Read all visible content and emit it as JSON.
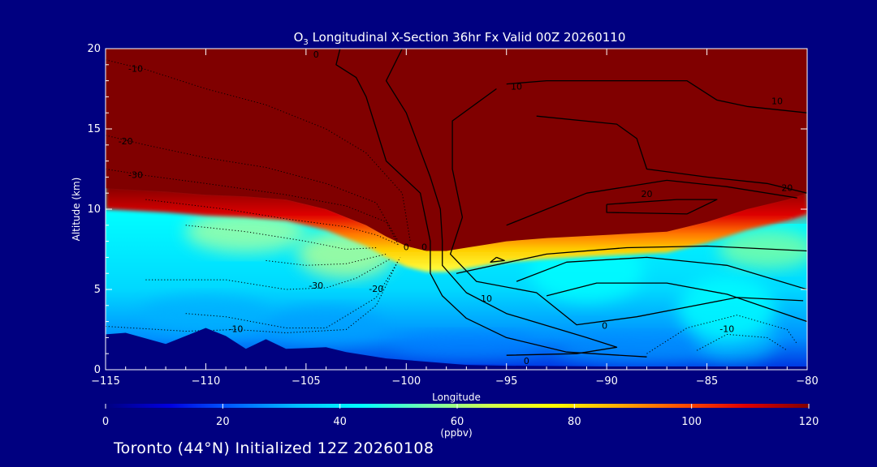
{
  "chart_data": {
    "type": "heatmap",
    "title": {
      "lead": "O",
      "sub": "3",
      "rest": " Longitudinal X-Section 36hr  Fx Valid 00Z 20260110"
    },
    "xlabel": "Longitude",
    "ylabel": "Altitude (km)",
    "xlim": [
      -115,
      -80
    ],
    "ylim": [
      0,
      20
    ],
    "x_ticks": [
      -115,
      -110,
      -105,
      -100,
      -95,
      -90,
      -85,
      -80
    ],
    "x_tick_labels": [
      "−115",
      "−110",
      "−105",
      "−100",
      "−95",
      "−90",
      "−85",
      "−80"
    ],
    "y_ticks": [
      0,
      5,
      10,
      15,
      20
    ],
    "y_tick_labels": [
      "0",
      "5",
      "10",
      "15",
      "20"
    ],
    "colorbar": {
      "min": 0,
      "max": 120,
      "ticks": [
        0,
        20,
        40,
        60,
        80,
        100,
        120
      ],
      "tick_labels": [
        "0",
        "20",
        "40",
        "60",
        "80",
        "100",
        "120"
      ],
      "label": "(ppbv)",
      "colors": [
        "#000080",
        "#0000e0",
        "#0060ff",
        "#00c0ff",
        "#00ffff",
        "#70ffb0",
        "#d0ff50",
        "#ffff00",
        "#ffb000",
        "#ff5000",
        "#e00000",
        "#800000"
      ]
    },
    "saturation_color": "#800000",
    "terrain_color": "#000080",
    "tropopause_height_km": [
      [
        -115,
        11.3
      ],
      [
        -112,
        11.1
      ],
      [
        -110,
        10.9
      ],
      [
        -108,
        10.8
      ],
      [
        -106,
        10.6
      ],
      [
        -104,
        10.0
      ],
      [
        -102,
        9.0
      ],
      [
        -101,
        8.3
      ],
      [
        -100,
        7.7
      ],
      [
        -99,
        7.4
      ],
      [
        -98,
        7.4
      ],
      [
        -97,
        7.6
      ],
      [
        -96,
        7.8
      ],
      [
        -95,
        8.0
      ],
      [
        -93,
        8.2
      ],
      [
        -90,
        8.4
      ],
      [
        -87,
        8.6
      ],
      [
        -85,
        9.2
      ],
      [
        -83,
        10.0
      ],
      [
        -81,
        10.6
      ],
      [
        -80,
        11.0
      ]
    ],
    "terrain_height_km": [
      [
        -115,
        2.2
      ],
      [
        -114,
        2.3
      ],
      [
        -112,
        1.6
      ],
      [
        -110,
        2.6
      ],
      [
        -109,
        2.1
      ],
      [
        -108,
        1.3
      ],
      [
        -107,
        1.9
      ],
      [
        -106,
        1.3
      ],
      [
        -104,
        1.4
      ],
      [
        -103,
        1.1
      ],
      [
        -101,
        0.7
      ],
      [
        -99,
        0.5
      ],
      [
        -97,
        0.3
      ],
      [
        -95,
        0.25
      ],
      [
        -90,
        0.2
      ],
      [
        -85,
        0.2
      ],
      [
        -80,
        0.2
      ]
    ],
    "contour_labels": [
      {
        "text": "-10",
        "lon": -113.5,
        "alt": 18.7
      },
      {
        "text": "0",
        "lon": -104.5,
        "alt": 19.6
      },
      {
        "text": "-20",
        "lon": -114,
        "alt": 14.2
      },
      {
        "text": "-30",
        "lon": -113.5,
        "alt": 12.1
      },
      {
        "text": "-30",
        "lon": -104.5,
        "alt": 5.2
      },
      {
        "text": "-20",
        "lon": -101.5,
        "alt": 5.0
      },
      {
        "text": "-10",
        "lon": -108.5,
        "alt": 2.5
      },
      {
        "text": "0",
        "lon": -100,
        "alt": 7.6
      },
      {
        "text": "0",
        "lon": -99.1,
        "alt": 7.6
      },
      {
        "text": "10",
        "lon": -94.5,
        "alt": 17.6
      },
      {
        "text": "10",
        "lon": -96,
        "alt": 4.4
      },
      {
        "text": "10",
        "lon": -81.5,
        "alt": 16.7
      },
      {
        "text": "20",
        "lon": -88,
        "alt": 10.9
      },
      {
        "text": "20",
        "lon": -81,
        "alt": 11.3
      },
      {
        "text": "0",
        "lon": -90.1,
        "alt": 2.7
      },
      {
        "text": "-10",
        "lon": -84,
        "alt": 2.5
      },
      {
        "text": "0",
        "lon": -94,
        "alt": 0.5
      }
    ]
  },
  "footer": {
    "pre": "Toronto (44",
    "degree": "°",
    "post": "N) Initialized 12Z 20260108"
  }
}
